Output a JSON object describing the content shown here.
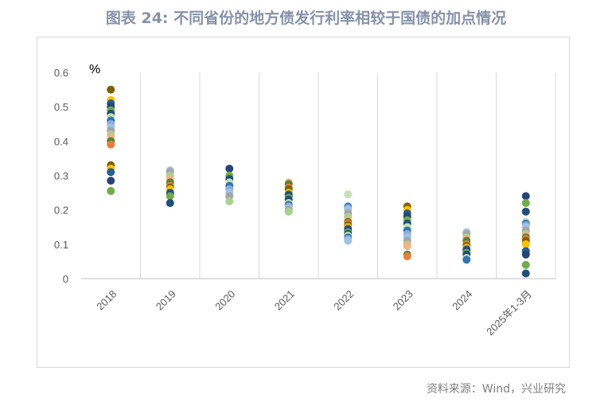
{
  "title": "图表 24: 不同省份的地方债发行利率相较于国债的加点情况",
  "source": "资料来源：Wind，兴业研究",
  "chart_data": {
    "type": "scatter",
    "unit": "%",
    "categories": [
      "2018",
      "2019",
      "2020",
      "2021",
      "2022",
      "2023",
      "2024",
      "2025年1-3月"
    ],
    "ylim": [
      0,
      0.6
    ],
    "yticks": [
      "0",
      "0.1",
      "0.2",
      "0.3",
      "0.4",
      "0.5",
      "0.6"
    ],
    "grid": "vertical",
    "points": [
      {
        "x": "2018",
        "ys": [
          0.55,
          0.52,
          0.51,
          0.5,
          0.49,
          0.48,
          0.47,
          0.46,
          0.45,
          0.44,
          0.43,
          0.42,
          0.41,
          0.4,
          0.39,
          0.33,
          0.32,
          0.31,
          0.285,
          0.255
        ]
      },
      {
        "x": "2019",
        "ys": [
          0.315,
          0.31,
          0.3,
          0.29,
          0.28,
          0.27,
          0.265,
          0.26,
          0.25,
          0.245,
          0.24,
          0.22
        ]
      },
      {
        "x": "2020",
        "ys": [
          0.32,
          0.3,
          0.29,
          0.28,
          0.27,
          0.26,
          0.25,
          0.24,
          0.225
        ]
      },
      {
        "x": "2021",
        "ys": [
          0.28,
          0.275,
          0.265,
          0.26,
          0.25,
          0.245,
          0.24,
          0.235,
          0.23,
          0.22,
          0.215,
          0.21,
          0.205,
          0.2,
          0.195
        ]
      },
      {
        "x": "2022",
        "ys": [
          0.245,
          0.21,
          0.205,
          0.2,
          0.19,
          0.18,
          0.17,
          0.165,
          0.16,
          0.155,
          0.15,
          0.145,
          0.14,
          0.135,
          0.13,
          0.125,
          0.12,
          0.115,
          0.11
        ]
      },
      {
        "x": "2023",
        "ys": [
          0.21,
          0.2,
          0.19,
          0.18,
          0.17,
          0.16,
          0.15,
          0.14,
          0.13,
          0.12,
          0.11,
          0.1,
          0.095,
          0.07,
          0.065
        ]
      },
      {
        "x": "2024",
        "ys": [
          0.135,
          0.13,
          0.12,
          0.115,
          0.11,
          0.1,
          0.095,
          0.09,
          0.085,
          0.08,
          0.075,
          0.07,
          0.06,
          0.055
        ]
      },
      {
        "x": "2025年1-3月",
        "ys": [
          0.24,
          0.22,
          0.195,
          0.165,
          0.16,
          0.155,
          0.15,
          0.14,
          0.13,
          0.125,
          0.12,
          0.115,
          0.11,
          0.1,
          0.08,
          0.07,
          0.04,
          0.015
        ]
      }
    ],
    "colors": [
      "#7f6000",
      "#548235",
      "#a9d18e",
      "#9dc3e6",
      "#2e75b6",
      "#1f4e79",
      "#264478",
      "#ffc000",
      "#ed7d31",
      "#f4b183",
      "#a5a5a5",
      "#8faadc",
      "#c5e0b4",
      "#70ad47",
      "#255e91"
    ]
  }
}
